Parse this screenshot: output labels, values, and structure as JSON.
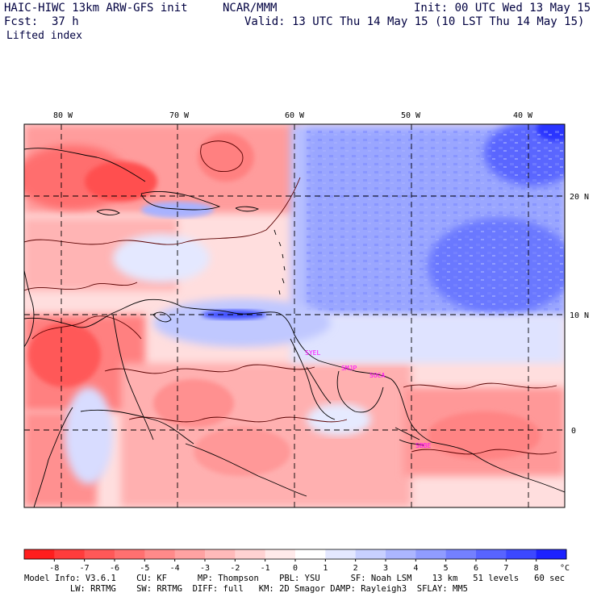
{
  "header": {
    "model": "HAIC-HIWC 13km ARW-GFS init",
    "org": "NCAR/MMM",
    "init": "Init: 00 UTC Wed 13 May 15",
    "fcst_label": "Fcst:",
    "fcst_value": "37 h",
    "valid": "Valid: 13 UTC Thu 14 May 15 (10 LST Thu 14 May 15)",
    "field": "Lifted index"
  },
  "map": {
    "longitude_labels": [
      "80 W",
      "70 W",
      "60 W",
      "50 W",
      "40 W"
    ],
    "latitude_labels": [
      "20 N",
      "10 N",
      "0"
    ],
    "stations": [
      "SYEL",
      "SMJP",
      "SOCA",
      "SBBE"
    ],
    "colors": {
      "strong_negative": "#ff2020",
      "mid_negative": "#ff8080",
      "light_negative": "#ffd0d0",
      "light_positive": "#d0d8ff",
      "mid_positive": "#8090ff",
      "strong_positive": "#2030ff",
      "station_text": "#ff00ff"
    }
  },
  "colorbar": {
    "ticks": [
      "-8",
      "-7",
      "-6",
      "-5",
      "-4",
      "-3",
      "-2",
      "-1",
      "0",
      "1",
      "2",
      "3",
      "4",
      "5",
      "6",
      "7",
      "8"
    ],
    "unit": "°C",
    "colors": [
      "#ff1e1e",
      "#ff3c3c",
      "#ff5858",
      "#ff7070",
      "#ff8a8a",
      "#ffa2a2",
      "#ffbaba",
      "#ffd2d2",
      "#ffeaea",
      "#ffffff",
      "#e4e8ff",
      "#c8d0ff",
      "#acb6ff",
      "#909cff",
      "#7480ff",
      "#5864ff",
      "#3c48ff",
      "#1c22ff"
    ]
  },
  "footer": {
    "line1": "Model Info: V3.6.1    CU: KF      MP: Thompson    PBL: YSU      SF: Noah LSM    13 km   51 levels   60 sec",
    "line2": "         LW: RRTMG    SW: RRTMG  DIFF: full   KM: 2D Smagor DAMP: Rayleigh3  SFLAY: MM5"
  }
}
